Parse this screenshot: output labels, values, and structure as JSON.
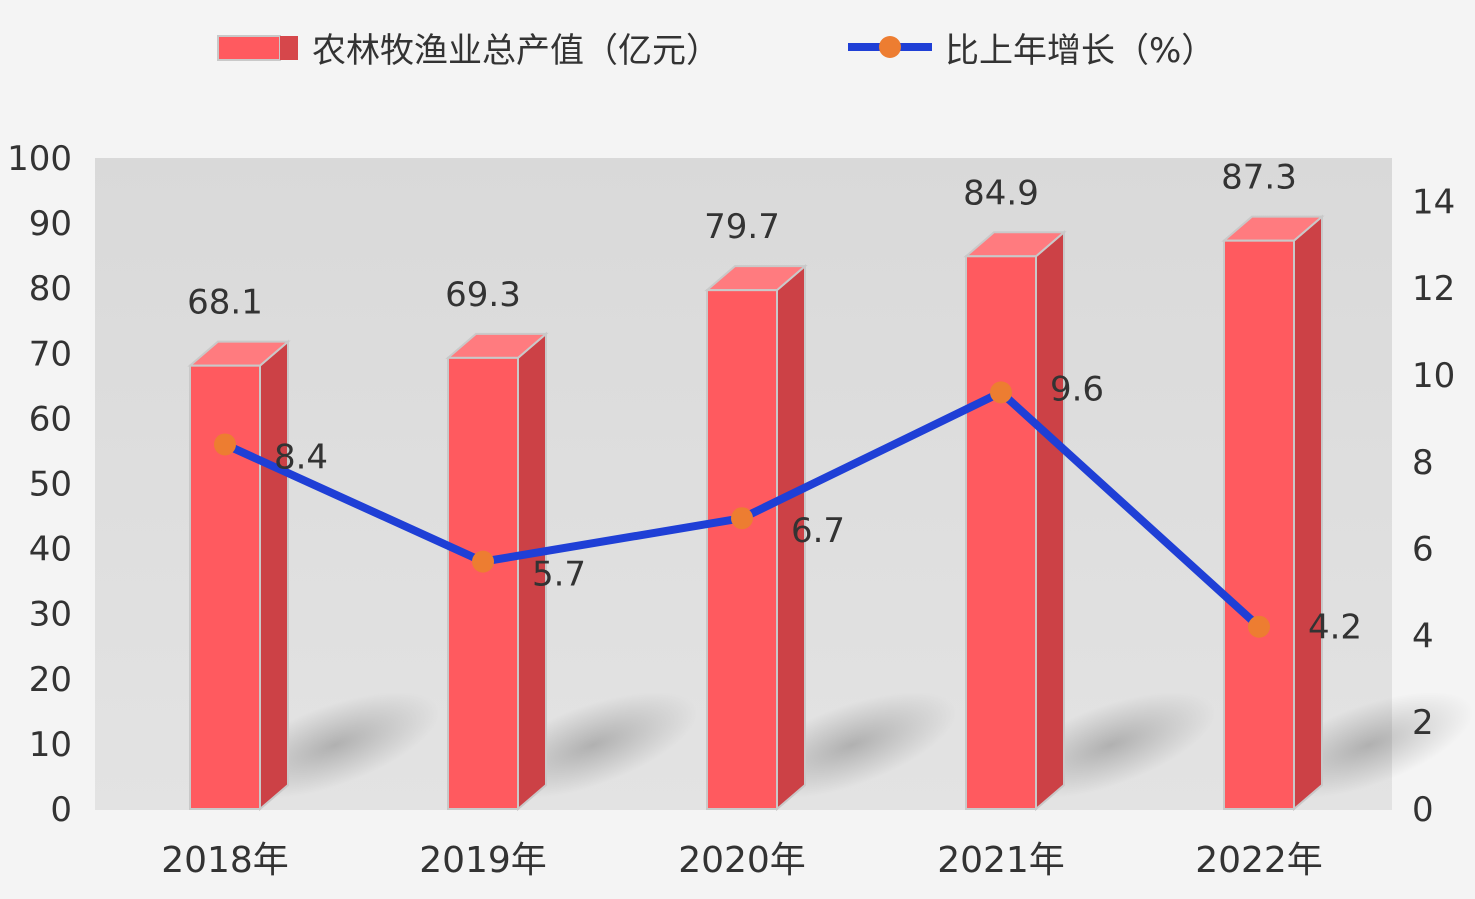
{
  "chart_data": {
    "type": "bar",
    "categories": [
      "2018年",
      "2019年",
      "2020年",
      "2021年",
      "2022年"
    ],
    "series": [
      {
        "name": "农林牧渔业总产值（亿元）",
        "type": "bar",
        "axis": "left",
        "values": [
          68.1,
          69.3,
          79.7,
          84.9,
          87.3
        ],
        "data_labels": [
          "68.1",
          "69.3",
          "79.7",
          "84.9",
          "87.3"
        ],
        "color": "#ff5a5f"
      },
      {
        "name": "比上年增长（%）",
        "type": "line",
        "axis": "right",
        "values": [
          8.4,
          5.7,
          6.7,
          9.6,
          4.2
        ],
        "data_labels": [
          "8.4",
          "5.7",
          "6.7",
          "9.6",
          "4.2"
        ],
        "color": "#1f3fd6",
        "marker_color": "#ed7d31"
      }
    ],
    "y_left": {
      "min": 0,
      "max": 100,
      "ticks": [
        "0",
        "10",
        "20",
        "30",
        "40",
        "50",
        "60",
        "70",
        "80",
        "90",
        "100"
      ]
    },
    "y_right": {
      "min": 0,
      "max": 15,
      "ticks": [
        "0",
        "2",
        "4",
        "6",
        "8",
        "10",
        "12",
        "14"
      ]
    },
    "legend": {
      "position": "top"
    },
    "grid": false
  }
}
